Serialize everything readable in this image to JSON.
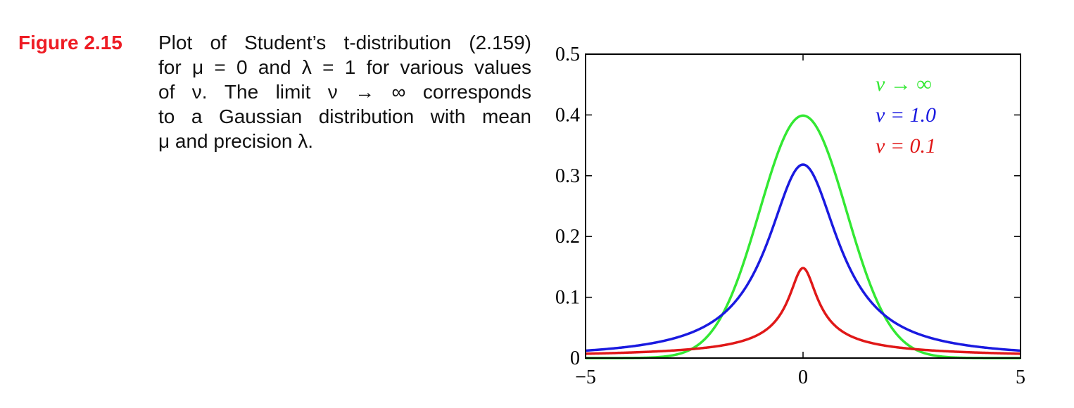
{
  "figure": {
    "label": "Figure 2.15",
    "label_color": "#ee1c24",
    "caption_lines": [
      "Plot of Student’s t-distribution (2.159)",
      "for μ = 0 and λ = 1 for various values",
      "of ν.  The limit ν → ∞ corresponds",
      "to a Gaussian distribution with mean",
      "μ and precision λ."
    ]
  },
  "chart_data": {
    "type": "line",
    "title": "",
    "xlabel": "",
    "ylabel": "",
    "xlim": [
      -5,
      5
    ],
    "ylim": [
      0,
      0.5
    ],
    "x_ticks": [
      "−5",
      "0",
      "5"
    ],
    "y_ticks": [
      "0",
      "0.1",
      "0.2",
      "0.3",
      "0.4",
      "0.5"
    ],
    "grid": false,
    "legend_position": "top-right",
    "series": [
      {
        "name": "ν → ∞",
        "color": "#33e833",
        "x": [
          -5,
          -4.5,
          -4,
          -3.5,
          -3,
          -2.5,
          -2,
          -1.5,
          -1,
          -0.5,
          0,
          0.5,
          1,
          1.5,
          2,
          2.5,
          3,
          3.5,
          4,
          4.5,
          5
        ],
        "y": [
          0.0,
          0.0,
          0.0001,
          0.0009,
          0.0044,
          0.0175,
          0.054,
          0.1295,
          0.242,
          0.3521,
          0.3989,
          0.3521,
          0.242,
          0.1295,
          0.054,
          0.0175,
          0.0044,
          0.0009,
          0.0001,
          0.0,
          0.0
        ]
      },
      {
        "name": "ν = 1.0",
        "color": "#1a1ae0",
        "x": [
          -5,
          -4.5,
          -4,
          -3.5,
          -3,
          -2.5,
          -2,
          -1.5,
          -1,
          -0.5,
          0,
          0.5,
          1,
          1.5,
          2,
          2.5,
          3,
          3.5,
          4,
          4.5,
          5
        ],
        "y": [
          0.0122,
          0.0149,
          0.0187,
          0.024,
          0.0318,
          0.0439,
          0.0637,
          0.0979,
          0.1592,
          0.2546,
          0.3183,
          0.2546,
          0.1592,
          0.0979,
          0.0637,
          0.0439,
          0.0318,
          0.024,
          0.0187,
          0.0149,
          0.0122
        ]
      },
      {
        "name": "ν = 0.1",
        "color": "#e01818",
        "x": [
          -5,
          -4.5,
          -4,
          -3.5,
          -3,
          -2.5,
          -2,
          -1.5,
          -1,
          -0.5,
          0,
          0.5,
          1,
          1.5,
          2,
          2.5,
          3,
          3.5,
          4,
          4.5,
          5
        ],
        "y": [
          0.0327,
          0.0358,
          0.0398,
          0.0454,
          0.0534,
          0.0615,
          0.0691,
          0.0781,
          0.0901,
          0.1117,
          0.1445,
          0.1117,
          0.0901,
          0.0781,
          0.0691,
          0.0615,
          0.0534,
          0.0454,
          0.0398,
          0.0358,
          0.0327
        ]
      }
    ]
  }
}
